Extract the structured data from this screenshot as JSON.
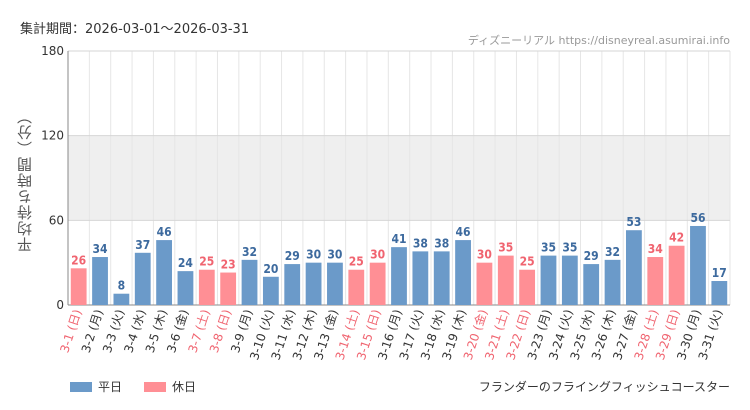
{
  "header": {
    "period_label": "集計期間：2026-03-01～2026-03-31",
    "site_label": "ディズニーリアル https://disneyreal.asumirai.info"
  },
  "legend": {
    "weekday_label": "平日",
    "holiday_label": "休日"
  },
  "footer": {
    "attraction_name": "フランダーのフライングフィッシュコースター"
  },
  "colors": {
    "weekday": "#6b9ac9",
    "holiday": "#ff8f95",
    "weekday_text": "#3d6a9e",
    "holiday_text": "#f06470"
  },
  "chart_data": {
    "type": "bar",
    "title": "",
    "xlabel": "",
    "ylabel": "平均待ち時間（分）",
    "ylim": [
      0,
      180
    ],
    "yticks": [
      0,
      60,
      120,
      180
    ],
    "shaded_band": [
      60,
      120
    ],
    "categories": [
      "3-1 (日)",
      "3-2 (月)",
      "3-3 (火)",
      "3-4 (水)",
      "3-5 (木)",
      "3-6 (金)",
      "3-7 (土)",
      "3-8 (日)",
      "3-9 (月)",
      "3-10 (火)",
      "3-11 (水)",
      "3-12 (木)",
      "3-13 (金)",
      "3-14 (土)",
      "3-15 (日)",
      "3-16 (月)",
      "3-17 (火)",
      "3-18 (水)",
      "3-19 (木)",
      "3-20 (金)",
      "3-21 (土)",
      "3-22 (日)",
      "3-23 (月)",
      "3-24 (火)",
      "3-25 (水)",
      "3-26 (木)",
      "3-27 (金)",
      "3-28 (土)",
      "3-29 (日)",
      "3-30 (月)",
      "3-31 (火)"
    ],
    "values": [
      26,
      34,
      8,
      37,
      46,
      24,
      25,
      23,
      32,
      20,
      29,
      30,
      30,
      25,
      30,
      41,
      38,
      38,
      46,
      30,
      35,
      25,
      35,
      35,
      29,
      32,
      53,
      34,
      42,
      56,
      17
    ],
    "day_type": [
      "holiday",
      "weekday",
      "weekday",
      "weekday",
      "weekday",
      "weekday",
      "holiday",
      "holiday",
      "weekday",
      "weekday",
      "weekday",
      "weekday",
      "weekday",
      "holiday",
      "holiday",
      "weekday",
      "weekday",
      "weekday",
      "weekday",
      "holiday",
      "holiday",
      "holiday",
      "weekday",
      "weekday",
      "weekday",
      "weekday",
      "weekday",
      "holiday",
      "holiday",
      "weekday",
      "weekday"
    ],
    "series": [
      {
        "name": "平日",
        "key": "weekday"
      },
      {
        "name": "休日",
        "key": "holiday"
      }
    ]
  }
}
